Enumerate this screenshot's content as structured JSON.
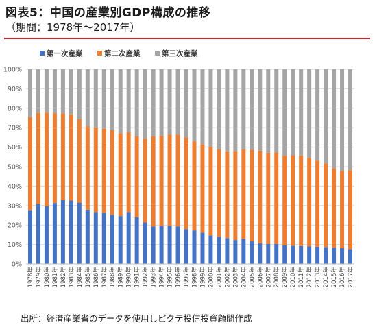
{
  "header": {
    "title": "図表5：中国の産業別GDP構成の推移",
    "subtitle": "（期間：1978年～2017年）"
  },
  "footer": {
    "source": "出所：経済産業省のデータを使用しピクテ投信投資顧問作成"
  },
  "chart_data": {
    "type": "bar",
    "stacked": true,
    "percent_stacked": true,
    "title": "",
    "xlabel": "",
    "ylabel": "",
    "ylim": [
      0,
      100
    ],
    "y_ticks": [
      "0%",
      "10%",
      "20%",
      "30%",
      "40%",
      "50%",
      "60%",
      "70%",
      "80%",
      "90%",
      "100%"
    ],
    "grid": true,
    "legend_position": "top-left",
    "categories": [
      "1978年",
      "1979年",
      "1980年",
      "1981年",
      "1982年",
      "1983年",
      "1984年",
      "1985年",
      "1986年",
      "1987年",
      "1988年",
      "1989年",
      "1990年",
      "1991年",
      "1992年",
      "1993年",
      "1994年",
      "1995年",
      "1996年",
      "1997年",
      "1998年",
      "1999年",
      "2000年",
      "2001年",
      "2002年",
      "2003年",
      "2004年",
      "2005年",
      "2006年",
      "2007年",
      "2008年",
      "2009年",
      "2010年",
      "2011年",
      "2012年",
      "2013年",
      "2014年",
      "2015年",
      "2016年",
      "2017年"
    ],
    "series": [
      {
        "name": "第一次産業",
        "color": "#4472c4",
        "values": [
          27.7,
          30.7,
          29.6,
          31.3,
          32.8,
          32.6,
          31.5,
          27.9,
          26.6,
          26.3,
          25.2,
          24.6,
          26.6,
          24.0,
          21.3,
          19.3,
          19.5,
          19.6,
          19.3,
          17.9,
          17.2,
          16.1,
          14.7,
          14.0,
          13.3,
          12.3,
          12.9,
          11.6,
          10.6,
          10.2,
          10.2,
          9.6,
          9.3,
          9.2,
          9.1,
          8.9,
          8.6,
          8.4,
          8.1,
          7.6
        ]
      },
      {
        "name": "第二次産業",
        "color": "#ed7d31",
        "values": [
          47.7,
          46.9,
          48.1,
          46.0,
          44.6,
          44.2,
          42.9,
          42.7,
          43.5,
          43.3,
          43.5,
          42.5,
          41.0,
          41.5,
          43.1,
          46.2,
          46.2,
          46.8,
          47.1,
          47.1,
          45.8,
          45.4,
          45.5,
          44.8,
          44.5,
          45.6,
          45.9,
          47.0,
          47.6,
          46.9,
          47.0,
          46.0,
          46.5,
          46.5,
          45.4,
          44.2,
          43.1,
          40.8,
          39.6,
          40.5
        ]
      },
      {
        "name": "第三次産業",
        "color": "#a5a5a5",
        "values": [
          24.6,
          22.4,
          22.3,
          22.7,
          22.6,
          23.2,
          25.6,
          29.4,
          29.9,
          30.4,
          31.3,
          32.9,
          32.4,
          34.5,
          35.6,
          34.5,
          34.3,
          33.6,
          33.6,
          35.0,
          37.0,
          38.5,
          39.8,
          41.2,
          42.2,
          42.1,
          41.2,
          41.4,
          41.8,
          42.9,
          42.8,
          44.4,
          44.2,
          44.3,
          45.5,
          46.9,
          48.3,
          50.8,
          52.3,
          51.9
        ]
      }
    ]
  }
}
